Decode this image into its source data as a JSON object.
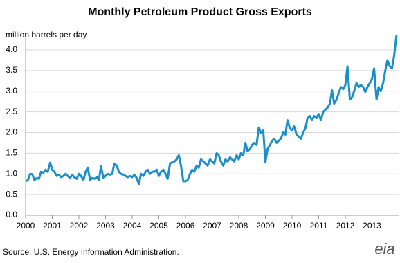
{
  "chart_data": {
    "type": "line",
    "title": "Monthly Petroleum Product Gross Exports",
    "y_label": "million barrels per day",
    "source": "Source:  U.S. Energy Information Administration.",
    "logo": "eia",
    "color": "#1a8fc9",
    "grid": true,
    "xlim": [
      2000,
      2014
    ],
    "xticks": [
      2000,
      2001,
      2002,
      2003,
      2004,
      2005,
      2006,
      2007,
      2008,
      2009,
      2010,
      2011,
      2012,
      2013
    ],
    "ylim": [
      0,
      4.2
    ],
    "yticks": [
      {
        "value": 0,
        "label": "0.0"
      },
      0.5,
      {
        "value": 1,
        "label": "1.0"
      },
      1.5,
      {
        "value": 2,
        "label": "2.0"
      },
      2.5,
      {
        "value": 3,
        "label": "3.0"
      },
      3.5,
      {
        "value": 4,
        "label": "4.0"
      }
    ],
    "x": [
      2000,
      2000.08,
      2000.17,
      2000.25,
      2000.33,
      2000.42,
      2000.5,
      2000.58,
      2000.67,
      2000.75,
      2000.83,
      2000.92,
      2001,
      2001.08,
      2001.17,
      2001.25,
      2001.33,
      2001.42,
      2001.5,
      2001.58,
      2001.67,
      2001.75,
      2001.83,
      2001.92,
      2002,
      2002.08,
      2002.17,
      2002.25,
      2002.33,
      2002.42,
      2002.5,
      2002.58,
      2002.67,
      2002.75,
      2002.83,
      2002.92,
      2003,
      2003.08,
      2003.17,
      2003.25,
      2003.33,
      2003.42,
      2003.5,
      2003.58,
      2003.67,
      2003.75,
      2003.83,
      2003.92,
      2004,
      2004.08,
      2004.17,
      2004.25,
      2004.33,
      2004.42,
      2004.5,
      2004.58,
      2004.67,
      2004.75,
      2004.83,
      2004.92,
      2005,
      2005.08,
      2005.17,
      2005.25,
      2005.33,
      2005.42,
      2005.5,
      2005.58,
      2005.67,
      2005.75,
      2005.83,
      2005.92,
      2006,
      2006.08,
      2006.17,
      2006.25,
      2006.33,
      2006.42,
      2006.5,
      2006.58,
      2006.67,
      2006.75,
      2006.83,
      2006.92,
      2007,
      2007.08,
      2007.17,
      2007.25,
      2007.33,
      2007.42,
      2007.5,
      2007.58,
      2007.67,
      2007.75,
      2007.83,
      2007.92,
      2008,
      2008.08,
      2008.17,
      2008.25,
      2008.33,
      2008.42,
      2008.5,
      2008.58,
      2008.67,
      2008.75,
      2008.83,
      2008.92,
      2009,
      2009.08,
      2009.17,
      2009.25,
      2009.33,
      2009.42,
      2009.5,
      2009.58,
      2009.67,
      2009.75,
      2009.83,
      2009.92,
      2010,
      2010.08,
      2010.17,
      2010.25,
      2010.33,
      2010.42,
      2010.5,
      2010.58,
      2010.67,
      2010.75,
      2010.83,
      2010.92,
      2011,
      2011.08,
      2011.17,
      2011.25,
      2011.33,
      2011.42,
      2011.5,
      2011.58,
      2011.67,
      2011.75,
      2011.83,
      2011.92,
      2012,
      2012.08,
      2012.17,
      2012.25,
      2012.33,
      2012.42,
      2012.5,
      2012.58,
      2012.67,
      2012.75,
      2012.83,
      2012.92,
      2013,
      2013.08,
      2013.17,
      2013.25,
      2013.33,
      2013.42,
      2013.5,
      2013.58,
      2013.67,
      2013.75,
      2013.83,
      2013.92
    ],
    "values": [
      0.83,
      0.84,
      1.0,
      0.99,
      0.85,
      0.9,
      0.88,
      1.05,
      1.03,
      1.1,
      1.05,
      1.27,
      1.1,
      1.05,
      0.95,
      0.98,
      0.92,
      0.95,
      1.0,
      0.95,
      0.9,
      0.98,
      0.92,
      0.88,
      1.0,
      0.95,
      0.85,
      1.05,
      1.15,
      0.85,
      0.9,
      0.88,
      0.92,
      0.85,
      1.18,
      0.9,
      0.95,
      1.0,
      0.98,
      1.0,
      1.25,
      1.2,
      1.05,
      1.0,
      0.98,
      0.95,
      0.92,
      0.95,
      0.92,
      0.98,
      0.9,
      0.75,
      1.0,
      0.95,
      1.05,
      1.1,
      1.0,
      1.05,
      1.05,
      1.1,
      0.95,
      1.05,
      1.1,
      1.0,
      0.88,
      1.25,
      1.28,
      1.3,
      1.35,
      1.45,
      1.2,
      0.82,
      0.82,
      0.85,
      1.0,
      1.1,
      1.05,
      1.2,
      1.15,
      1.35,
      1.3,
      1.25,
      1.2,
      1.35,
      1.3,
      1.25,
      1.5,
      1.45,
      1.3,
      1.2,
      1.35,
      1.3,
      1.4,
      1.35,
      1.3,
      1.45,
      1.35,
      1.5,
      1.45,
      1.75,
      1.55,
      1.6,
      1.7,
      1.75,
      1.7,
      2.12,
      2.0,
      2.05,
      1.28,
      1.6,
      1.7,
      1.8,
      1.85,
      1.75,
      1.8,
      1.85,
      2.0,
      1.95,
      2.3,
      2.1,
      2.05,
      2.15,
      1.95,
      1.9,
      1.85,
      2.0,
      2.1,
      2.35,
      2.4,
      2.3,
      2.4,
      2.35,
      2.45,
      2.3,
      2.5,
      2.55,
      2.6,
      2.7,
      3.02,
      2.7,
      2.8,
      2.95,
      3.1,
      3.05,
      3.15,
      3.6,
      2.8,
      2.85,
      3.0,
      3.2,
      3.1,
      3.15,
      3.1,
      2.98,
      3.1,
      3.2,
      3.3,
      3.55,
      2.8,
      3.1,
      3.0,
      3.2,
      3.5,
      3.75,
      3.6,
      3.55,
      3.85,
      4.35
    ]
  }
}
